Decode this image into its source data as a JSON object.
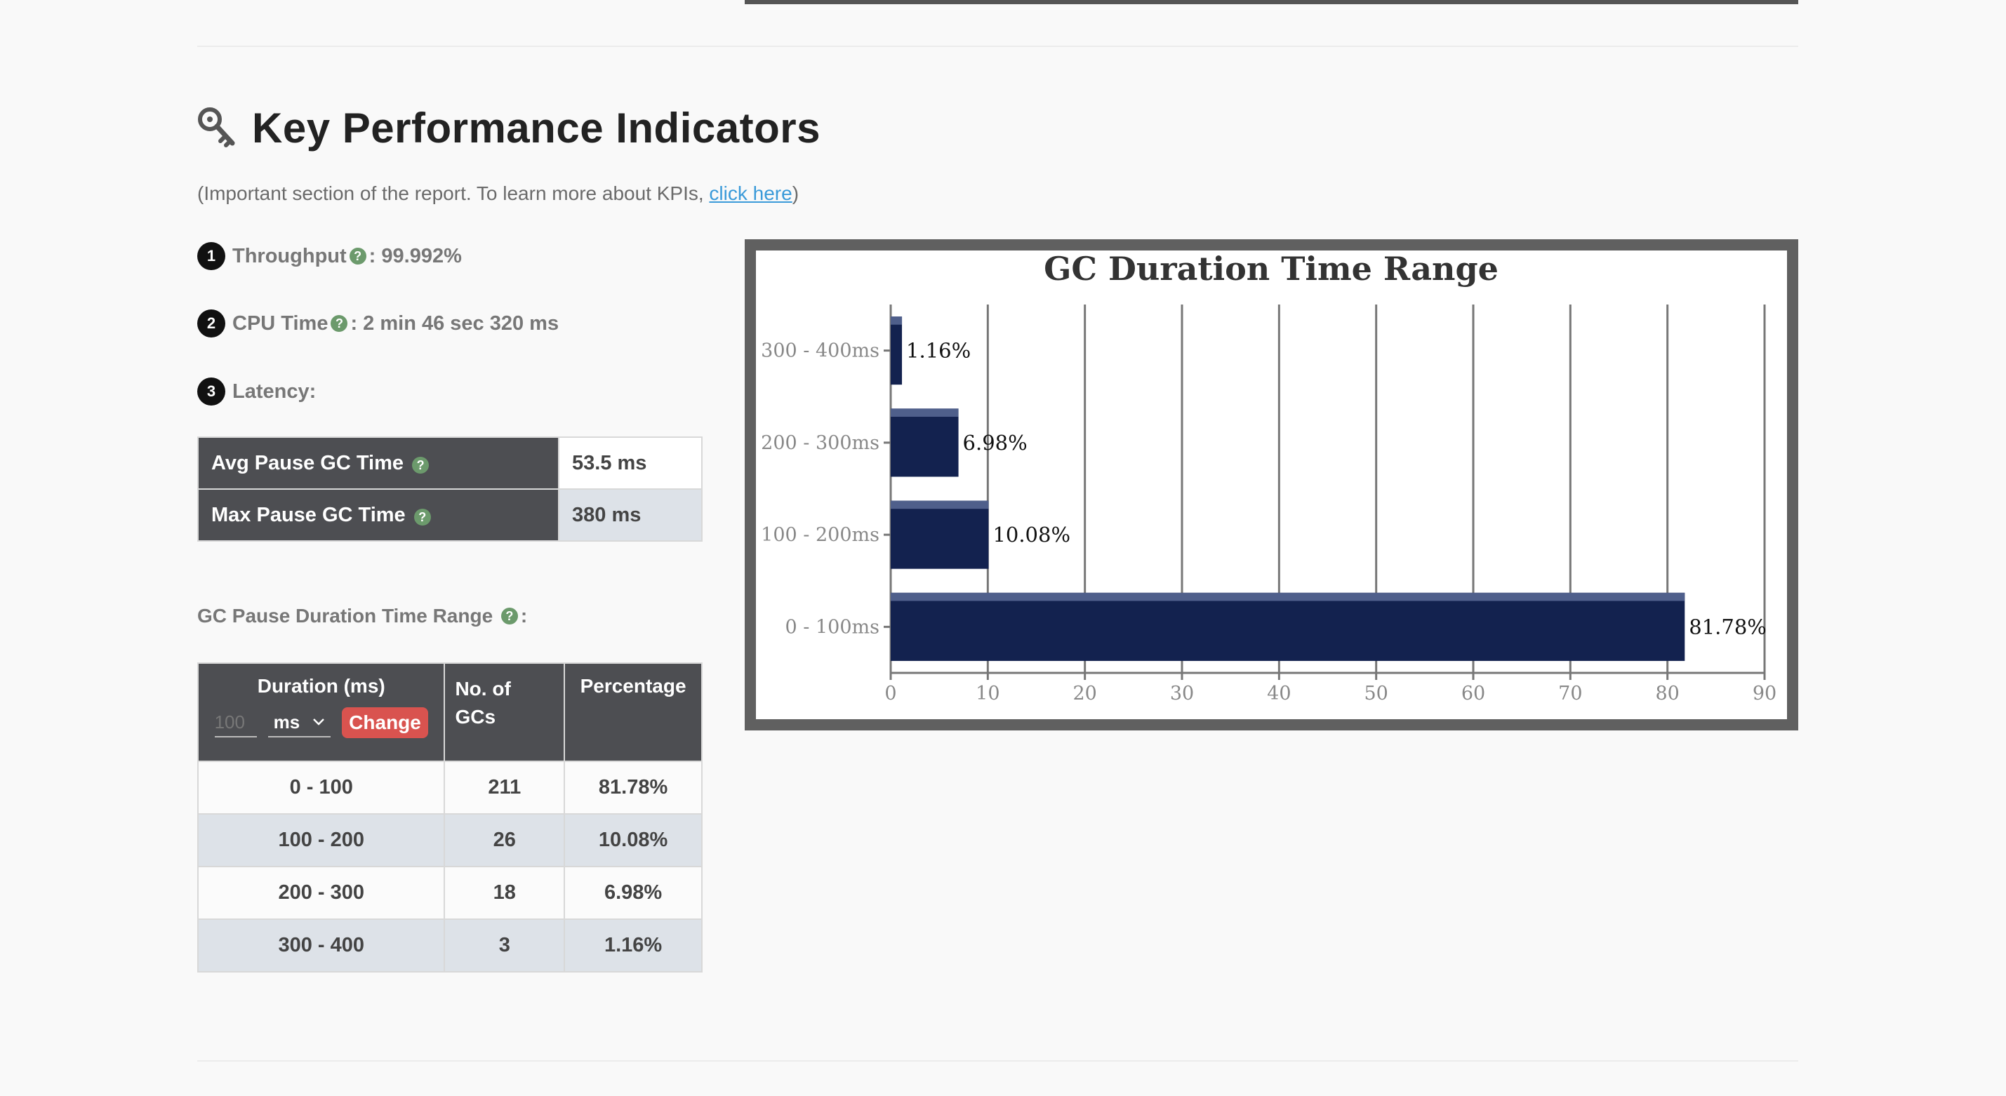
{
  "header": {
    "title": "Key Performance Indicators",
    "subtitle_prefix": "(Important section of the report. To learn more about KPIs, ",
    "subtitle_link": "click here",
    "subtitle_suffix": ")"
  },
  "kpis": {
    "throughput": {
      "num": "1",
      "label": "Throughput",
      "value": " : 99.992%"
    },
    "cpu_time": {
      "num": "2",
      "label": "CPU Time",
      "value": " : 2 min 46 sec 320 ms"
    },
    "latency": {
      "num": "3",
      "label": "Latency:"
    }
  },
  "latency_table": {
    "avg_label": "Avg Pause GC Time",
    "avg_value": "53.5 ms",
    "max_label": "Max Pause GC Time",
    "max_value": "380 ms"
  },
  "range_section": {
    "label": "GC Pause Duration Time Range",
    "suffix": ":"
  },
  "duration_table": {
    "headers": {
      "duration": "Duration (ms)",
      "count": "No. of GCs",
      "percentage": "Percentage"
    },
    "input_placeholder": "100",
    "unit": "ms",
    "change_label": "Change",
    "rows": [
      {
        "range": "0 - 100",
        "count": "211",
        "pct": "81.78%"
      },
      {
        "range": "100 - 200",
        "count": "26",
        "pct": "10.08%"
      },
      {
        "range": "200 - 300",
        "count": "18",
        "pct": "6.98%"
      },
      {
        "range": "300 - 400",
        "count": "3",
        "pct": "1.16%"
      }
    ]
  },
  "colors": {
    "bar": "#13224f",
    "header_bg": "#4d4e52",
    "help": "#6c9a6c",
    "change": "#d9534f",
    "link": "#3a9ad9"
  },
  "icons": {
    "title": "key-icon",
    "help": "question-circle-icon",
    "select": "chevron-down-icon"
  },
  "chart_data": {
    "type": "bar",
    "orientation": "horizontal",
    "title": "GC Duration Time Range",
    "categories": [
      "0 - 100ms",
      "100 - 200ms",
      "200 - 300ms",
      "300 - 400ms"
    ],
    "values": [
      81.78,
      10.08,
      6.98,
      1.16
    ],
    "data_labels": [
      "81.78%",
      "10.08%",
      "6.98%",
      "1.16%"
    ],
    "xlim": [
      0,
      90
    ],
    "xticks": [
      0,
      10,
      20,
      30,
      40,
      50,
      60,
      70,
      80,
      90
    ],
    "grid": true,
    "legend": "none"
  }
}
